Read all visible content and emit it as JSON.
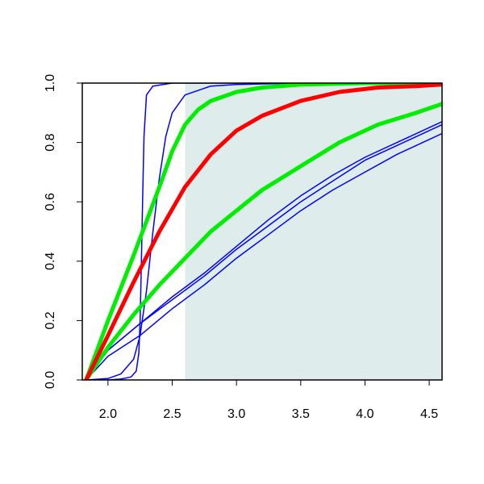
{
  "chart_data": {
    "type": "line",
    "title": "",
    "xlabel": "",
    "ylabel": "",
    "xlim": [
      1.8,
      4.6
    ],
    "ylim": [
      0,
      1
    ],
    "x_ticks": [
      {
        "value": 2.0,
        "label": "2.0"
      },
      {
        "value": 2.5,
        "label": "2.5"
      },
      {
        "value": 3.0,
        "label": "3.0"
      },
      {
        "value": 3.5,
        "label": "3.5"
      },
      {
        "value": 4.0,
        "label": "4.0"
      },
      {
        "value": 4.5,
        "label": "4.5"
      }
    ],
    "y_ticks": [
      {
        "value": 0.0,
        "label": "0.0"
      },
      {
        "value": 0.2,
        "label": "0.2"
      },
      {
        "value": 0.4,
        "label": "0.4"
      },
      {
        "value": 0.6,
        "label": "0.6"
      },
      {
        "value": 0.8,
        "label": "0.8"
      },
      {
        "value": 1.0,
        "label": "1.0"
      }
    ],
    "grid": false,
    "legend": "none",
    "shaded_region": {
      "x": [
        2.6,
        4.6
      ],
      "y": [
        0,
        1
      ],
      "color": "#dfecec"
    },
    "series": [
      {
        "color": "#0000ff",
        "width": 1.5,
        "x": [
          1.83,
          2.0,
          2.1,
          2.18,
          2.22,
          2.24,
          2.25,
          2.26,
          2.27,
          2.28,
          2.3,
          2.35,
          2.5,
          3.0,
          4.6
        ],
        "y": [
          0.0,
          0.0,
          0.003,
          0.01,
          0.03,
          0.09,
          0.2,
          0.4,
          0.62,
          0.82,
          0.96,
          0.99,
          1.0,
          1.0,
          1.0
        ]
      },
      {
        "color": "#0000ff",
        "width": 1.5,
        "x": [
          1.83,
          2.0,
          2.1,
          2.2,
          2.25,
          2.3,
          2.35,
          2.4,
          2.45,
          2.5,
          2.6,
          2.8,
          3.0,
          3.5,
          4.6
        ],
        "y": [
          0.0,
          0.005,
          0.02,
          0.07,
          0.15,
          0.3,
          0.5,
          0.68,
          0.82,
          0.9,
          0.96,
          0.99,
          0.995,
          1.0,
          1.0
        ]
      },
      {
        "color": "#0000ff",
        "width": 1.5,
        "x": [
          1.83,
          2.0,
          2.25,
          2.5,
          2.75,
          3.0,
          3.25,
          3.5,
          3.75,
          4.0,
          4.25,
          4.6
        ],
        "y": [
          0.0,
          0.1,
          0.19,
          0.28,
          0.36,
          0.45,
          0.54,
          0.62,
          0.69,
          0.75,
          0.8,
          0.87
        ]
      },
      {
        "color": "#0000ff",
        "width": 1.5,
        "x": [
          1.83,
          2.0,
          2.25,
          2.5,
          2.75,
          3.0,
          3.25,
          3.5,
          3.75,
          4.0,
          4.25,
          4.6
        ],
        "y": [
          0.0,
          0.1,
          0.19,
          0.27,
          0.35,
          0.44,
          0.52,
          0.6,
          0.67,
          0.74,
          0.79,
          0.86
        ]
      },
      {
        "color": "#0000ff",
        "width": 1.5,
        "x": [
          1.83,
          2.0,
          2.25,
          2.5,
          2.75,
          3.0,
          3.25,
          3.5,
          3.75,
          4.0,
          4.25,
          4.6
        ],
        "y": [
          0.0,
          0.08,
          0.15,
          0.24,
          0.32,
          0.41,
          0.49,
          0.57,
          0.64,
          0.7,
          0.76,
          0.83
        ]
      },
      {
        "color": "#00ee00",
        "width": 5,
        "x": [
          1.83,
          2.0,
          2.2,
          2.4,
          2.6,
          2.8,
          3.0,
          3.2,
          3.5,
          3.8,
          4.1,
          4.4,
          4.6
        ],
        "y": [
          0.0,
          0.11,
          0.22,
          0.32,
          0.41,
          0.5,
          0.57,
          0.64,
          0.72,
          0.8,
          0.86,
          0.9,
          0.93
        ]
      },
      {
        "color": "#00ee00",
        "width": 5,
        "x": [
          1.83,
          2.0,
          2.2,
          2.4,
          2.5,
          2.6,
          2.7,
          2.8,
          3.0,
          3.2,
          3.5,
          4.0,
          4.6
        ],
        "y": [
          0.0,
          0.2,
          0.42,
          0.65,
          0.77,
          0.86,
          0.91,
          0.94,
          0.97,
          0.985,
          0.995,
          1.0,
          1.0
        ]
      },
      {
        "color": "#ff0000",
        "width": 5,
        "x": [
          1.83,
          2.0,
          2.2,
          2.4,
          2.6,
          2.8,
          3.0,
          3.2,
          3.5,
          3.8,
          4.1,
          4.4,
          4.6
        ],
        "y": [
          0.0,
          0.15,
          0.33,
          0.5,
          0.65,
          0.76,
          0.84,
          0.89,
          0.94,
          0.97,
          0.985,
          0.99,
          0.995
        ]
      }
    ]
  }
}
